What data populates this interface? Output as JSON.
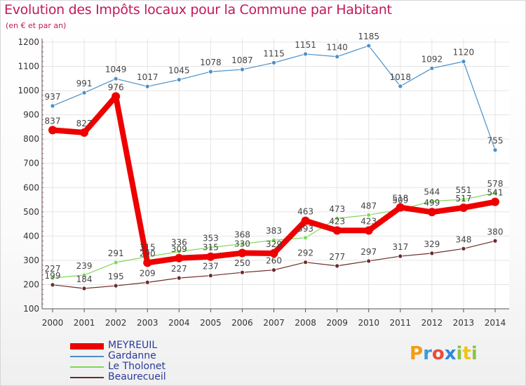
{
  "title": "Evolution des Impôts locaux pour la Commune par Habitant",
  "subtitle": "(en € et par an)",
  "logo": {
    "p": "P",
    "r": "r",
    "o": "o",
    "x": "x",
    "i": "i",
    "t": "t",
    "i2": "i"
  },
  "chart_data": {
    "type": "line",
    "title": "Evolution des Impôts locaux pour la Commune par Habitant",
    "ylabel": "(en € et par an)",
    "xlabel": "",
    "ylim": [
      100,
      1200
    ],
    "yticks": [
      100,
      200,
      300,
      400,
      500,
      600,
      700,
      800,
      900,
      1000,
      1100,
      1200
    ],
    "categories": [
      "2000",
      "2001",
      "2002",
      "2003",
      "2004",
      "2005",
      "2006",
      "2007",
      "2008",
      "2009",
      "2010",
      "2011",
      "2012",
      "2013",
      "2014"
    ],
    "series": [
      {
        "name": "MEYREUIL",
        "color": "#ee0000",
        "values": [
          837,
          827,
          976,
          290,
          309,
          315,
          330,
          329,
          463,
          423,
          423,
          518,
          499,
          517,
          541
        ]
      },
      {
        "name": "Gardanne",
        "color": "#4a90c8",
        "values": [
          937,
          991,
          1049,
          1017,
          1045,
          1078,
          1087,
          1115,
          1151,
          1140,
          1185,
          1018,
          1092,
          1120,
          755
        ]
      },
      {
        "name": "Le Tholonet",
        "color": "#7ed957",
        "values": [
          227,
          239,
          291,
          315,
          336,
          353,
          368,
          383,
          393,
          473,
          487,
          509,
          544,
          551,
          578
        ]
      },
      {
        "name": "Beaurecueil",
        "color": "#6d2a2a",
        "values": [
          199,
          184,
          195,
          209,
          227,
          237,
          250,
          260,
          292,
          277,
          297,
          317,
          329,
          348,
          380
        ]
      }
    ],
    "legend_position": "bottom-left"
  }
}
